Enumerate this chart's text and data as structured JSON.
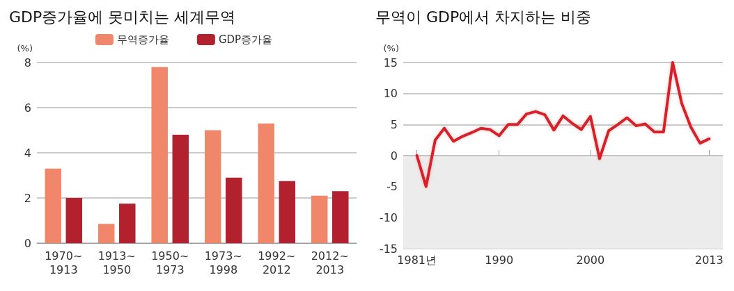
{
  "chart_data": [
    {
      "type": "bar",
      "title": "GDP증가율에 못미치는 세계무역",
      "ylabel": "(%)",
      "categories": [
        "1970~\n1913",
        "1913~\n1950",
        "1950~\n1973",
        "1973~\n1998",
        "1992~\n2012",
        "2012~\n2013"
      ],
      "series": [
        {
          "name": "무역증가율",
          "color": "#f0866a",
          "values": [
            3.3,
            0.85,
            7.8,
            5.0,
            5.3,
            2.1
          ]
        },
        {
          "name": "GDP증가율",
          "color": "#b3202e",
          "values": [
            2.0,
            1.75,
            4.8,
            2.9,
            2.75,
            2.3
          ]
        }
      ],
      "ylim": [
        0,
        8
      ],
      "yticks": [
        0,
        2,
        4,
        6,
        8
      ],
      "grid": "y",
      "legend": "top"
    },
    {
      "type": "line",
      "title": "무역이 GDP에서 차지하는 비중",
      "ylabel": "(%)",
      "x": [
        1981,
        1982,
        1983,
        1984,
        1985,
        1986,
        1987,
        1988,
        1989,
        1990,
        1991,
        1992,
        1993,
        1994,
        1995,
        1996,
        1997,
        1998,
        1999,
        2000,
        2001,
        2002,
        2003,
        2004,
        2005,
        2006,
        2007,
        2008,
        2009,
        2010,
        2011,
        2012,
        2013
      ],
      "series": [
        {
          "color": "#d4202c",
          "values": [
            0,
            -5,
            2.5,
            4.4,
            2.3,
            3.1,
            3.7,
            4.4,
            4.2,
            3.2,
            5,
            5,
            6.7,
            7.1,
            6.6,
            4.1,
            6.4,
            5.2,
            4.2,
            6.3,
            -0.5,
            4,
            5,
            6.1,
            4.8,
            5.1,
            3.8,
            3.8,
            15,
            8.4,
            4.6,
            2,
            2.7
          ]
        }
      ],
      "xlim": [
        1979.5,
        2014.5
      ],
      "xticks": [
        {
          "value": 1981,
          "label": "1981년"
        },
        1990,
        2000,
        2013
      ],
      "ylim": [
        -15,
        15
      ],
      "yticks": [
        -15,
        -10,
        -5,
        0,
        5,
        10,
        15
      ],
      "grid": "y",
      "marker": "none",
      "line_style": "solid",
      "bands": [
        {
          "axis": "y",
          "from": -15,
          "to": 0,
          "color": "#ececec"
        }
      ]
    }
  ]
}
